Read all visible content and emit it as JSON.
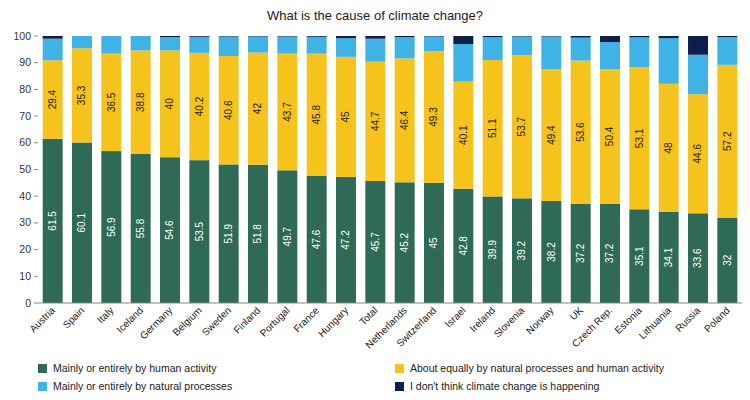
{
  "chart_data": {
    "type": "bar",
    "stacked": true,
    "title": "What is the cause of climate change?",
    "categories": [
      "Austria",
      "Spain",
      "Italy",
      "Iceland",
      "Germany",
      "Belgium",
      "Sweden",
      "Finland",
      "Portugal",
      "France",
      "Hungary",
      "Total",
      "Netherlands",
      "Switzerland",
      "Israel",
      "Ireland",
      "Slovenia",
      "Norway",
      "UK",
      "Czech Rep.",
      "Estonia",
      "Lithuania",
      "Russia",
      "Poland"
    ],
    "series": [
      {
        "name": "Mainly or entirely by human activity",
        "color": "#2e6a56",
        "data_labels": true,
        "values": [
          61.5,
          60.1,
          56.9,
          55.8,
          54.6,
          53.5,
          51.9,
          51.8,
          49.7,
          47.6,
          47.2,
          45.7,
          45.2,
          45,
          42.8,
          39.9,
          39.2,
          38.2,
          37.2,
          37.2,
          35.1,
          34.1,
          33.6,
          32
        ]
      },
      {
        "name": "About equally by natural processes and human activity",
        "color": "#f6c21c",
        "data_labels": true,
        "values": [
          29.4,
          35.3,
          36.5,
          38.8,
          40,
          40.2,
          40.6,
          42,
          43.7,
          45.8,
          45,
          44.7,
          46.4,
          49.3,
          40.1,
          51.1,
          53.7,
          49.4,
          53.6,
          50.4,
          53.1,
          48,
          44.6,
          57.2
        ]
      },
      {
        "name": "Mainly or entirely by natural processes",
        "color": "#3fb2e6",
        "data_labels": false,
        "values": [
          8.1,
          4.6,
          6.6,
          5.4,
          5.0,
          6.0,
          7.3,
          6.0,
          6.4,
          6.3,
          7.0,
          8.6,
          8.0,
          5.5,
          14.1,
          8.6,
          6.9,
          12.2,
          8.6,
          10.1,
          11.3,
          17.1,
          14.8,
          10.4
        ]
      },
      {
        "name": "I don't think climate change is happening",
        "color": "#0e1f4d",
        "data_labels": false,
        "values": [
          1.0,
          0,
          0,
          0,
          0.4,
          0.3,
          0.2,
          0.2,
          0.2,
          0.3,
          0.8,
          1.0,
          0.4,
          0.2,
          3.0,
          0.4,
          0.2,
          0.2,
          0.6,
          2.3,
          0.5,
          0.8,
          7.0,
          0.4
        ]
      }
    ],
    "ylim": [
      0,
      100
    ],
    "yticks": [
      0,
      10,
      20,
      30,
      40,
      50,
      60,
      70,
      80,
      90,
      100
    ],
    "grid": false,
    "legend": "bottom"
  }
}
